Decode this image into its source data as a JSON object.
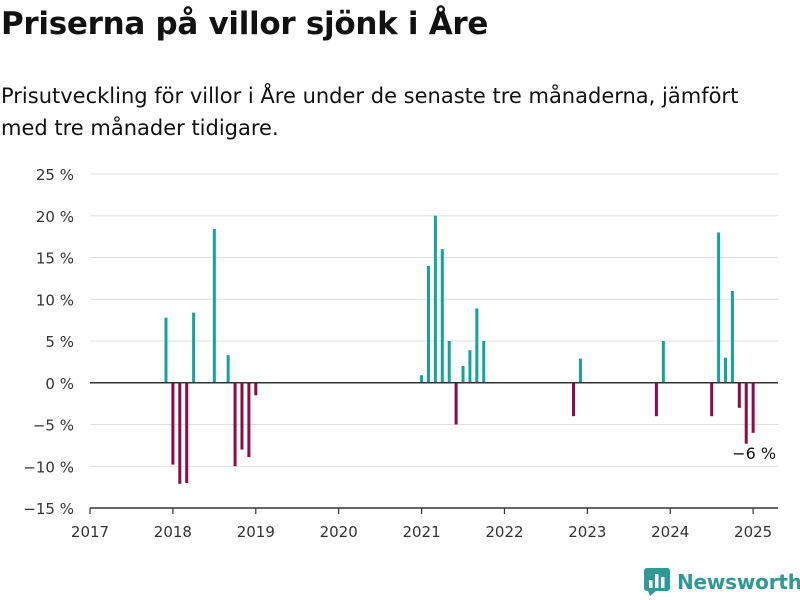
{
  "title": "Priserna på villor sjönk i Åre",
  "subtitle": "Prisutveckling för villor i Åre under de senaste tre månaderna, jämfört med tre månader tidigare.",
  "brand": {
    "name": "Newsworthy",
    "icon": "bar-chart-logo-icon",
    "color": "#2f9a95"
  },
  "colors": {
    "positive": "#13a39a",
    "negative": "#8e0b45",
    "grid": "#e1e1e1",
    "axis": "#333333",
    "text": "#333333"
  },
  "chart_data": {
    "type": "bar",
    "xlabel": "",
    "ylabel": "",
    "xlim": [
      2017,
      2025.3
    ],
    "ylim": [
      -15,
      25
    ],
    "yticks": [
      -15,
      -10,
      -5,
      0,
      5,
      10,
      15,
      20,
      25
    ],
    "ytick_labels": [
      "−15 %",
      "−10 %",
      "−5 %",
      "0 %",
      "5 %",
      "10 %",
      "15 %",
      "20 %",
      "25 %"
    ],
    "xticks": [
      2017,
      2018,
      2019,
      2020,
      2021,
      2022,
      2023,
      2024,
      2025
    ],
    "xtick_labels": [
      "2017",
      "2018",
      "2019",
      "2020",
      "2021",
      "2022",
      "2023",
      "2024",
      "2025"
    ],
    "grid": "horizontal",
    "x": [
      "2017-12",
      "2018-01",
      "2018-02",
      "2018-03",
      "2018-04",
      "2018-07",
      "2018-09",
      "2018-10",
      "2018-11",
      "2018-12",
      "2019-01",
      "2021-01",
      "2021-02",
      "2021-03",
      "2021-04",
      "2021-05",
      "2021-06",
      "2021-07",
      "2021-08",
      "2021-09",
      "2021-10",
      "2022-11",
      "2022-12",
      "2023-11",
      "2023-12",
      "2024-07",
      "2024-08",
      "2024-09",
      "2024-10",
      "2024-11",
      "2024-12",
      "2025-01"
    ],
    "values": [
      7.8,
      -9.8,
      -12.1,
      -12,
      8.4,
      18.4,
      3.3,
      -10,
      -8,
      -8.9,
      -1.5,
      0.9,
      14,
      20,
      16,
      5,
      -5,
      2,
      3.9,
      8.9,
      5,
      -4,
      2.9,
      -4,
      5,
      -4,
      18,
      3,
      11,
      -3,
      -7.3,
      -6
    ],
    "annotations": [
      {
        "x": "2025-01",
        "y": -6,
        "label": "−6 %"
      }
    ]
  }
}
